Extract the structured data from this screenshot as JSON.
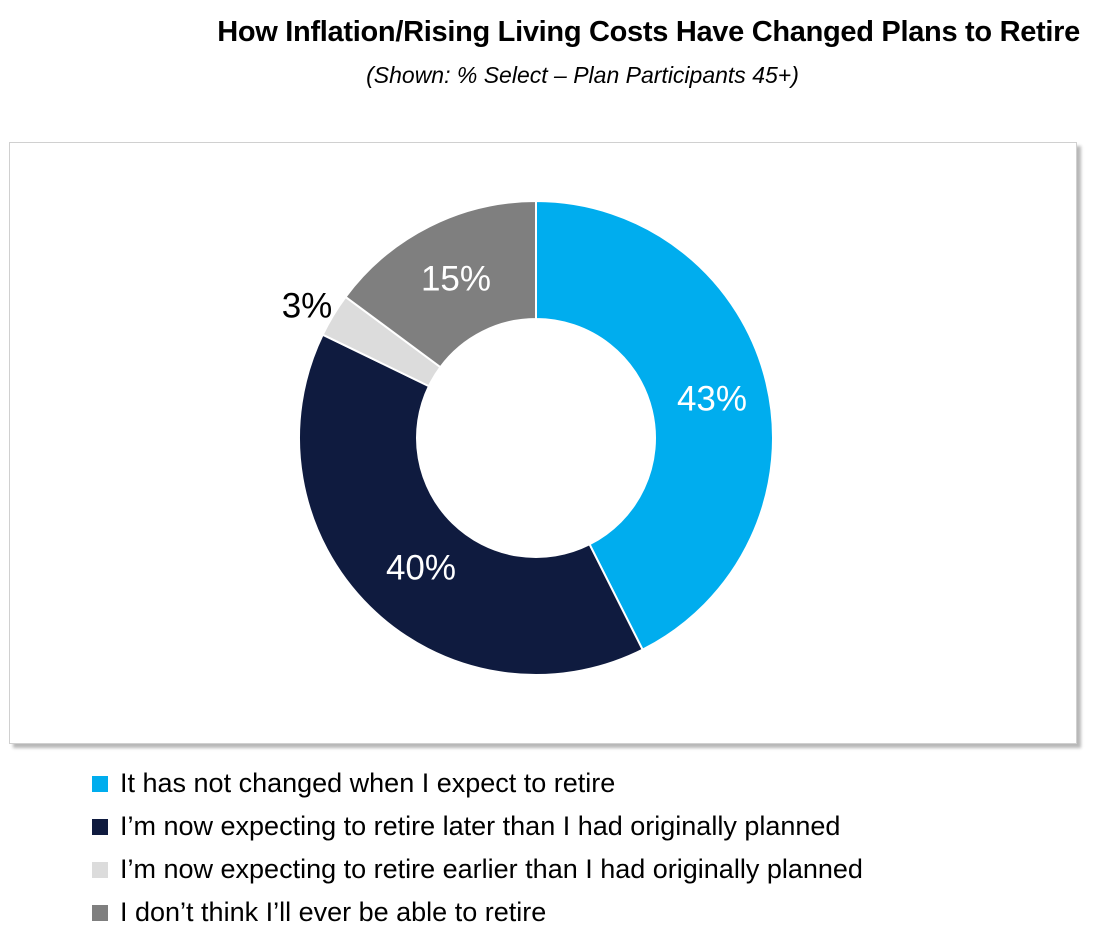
{
  "title": "How Inflation/Rising Living Costs Have Changed Plans to Retire",
  "subtitle": "(Shown: % Select – Plan Participants 45+)",
  "chart_data": {
    "type": "pie",
    "variant": "donut",
    "title": "How Inflation/Rising Living Costs Have Changed Plans to Retire",
    "subtitle": "(Shown: % Select – Plan Participants 45+)",
    "legend_position": "bottom-left",
    "slices": [
      {
        "label": "It has not changed when I expect to retire",
        "value": 43,
        "value_label": "43%",
        "color": "#00adee",
        "label_color": "#ffffff"
      },
      {
        "label": "I’m now expecting to retire later than I had originally planned",
        "value": 40,
        "value_label": "40%",
        "color": "#0f1b3f",
        "label_color": "#ffffff"
      },
      {
        "label": "I’m now expecting to retire earlier than I had originally planned",
        "value": 3,
        "value_label": "3%",
        "color": "#dcdcdc",
        "label_color": "#000000"
      },
      {
        "label": "I don’t think I’ll ever be able to retire",
        "value": 15,
        "value_label": "15%",
        "color": "#7f7f7f",
        "label_color": "#ffffff"
      }
    ]
  }
}
